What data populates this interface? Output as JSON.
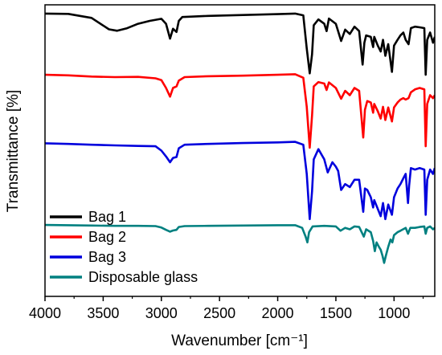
{
  "chart_data": {
    "type": "line",
    "title": "",
    "xlabel": "Wavenumber [cm⁻¹]",
    "ylabel": "Transmittance [%]",
    "xlim": [
      4000,
      650
    ],
    "x_reversed": true,
    "xticks": [
      4000,
      3500,
      3000,
      2500,
      2000,
      1500,
      1000
    ],
    "ylim": [
      0,
      100
    ],
    "y_tick_labels_shown": false,
    "grid": false,
    "legend_position": "bottom-left",
    "series": [
      {
        "name": "Bag 1",
        "color": "#000000",
        "points": [
          [
            4000,
            97
          ],
          [
            3800,
            96.9
          ],
          [
            3600,
            95.5
          ],
          [
            3450,
            91.6
          ],
          [
            3380,
            91.1
          ],
          [
            3300,
            91.9
          ],
          [
            3200,
            93.5
          ],
          [
            3100,
            94.5
          ],
          [
            3000,
            95.2
          ],
          [
            2960,
            93.5
          ],
          [
            2925,
            88.4
          ],
          [
            2900,
            91.8
          ],
          [
            2870,
            90.7
          ],
          [
            2850,
            94.5
          ],
          [
            2820,
            95.8
          ],
          [
            2600,
            96.2
          ],
          [
            2300,
            96.5
          ],
          [
            2000,
            96.8
          ],
          [
            1850,
            97
          ],
          [
            1780,
            96.4
          ],
          [
            1750,
            85
          ],
          [
            1725,
            76.5
          ],
          [
            1705,
            83
          ],
          [
            1690,
            93
          ],
          [
            1650,
            95
          ],
          [
            1600,
            93.5
          ],
          [
            1580,
            91
          ],
          [
            1560,
            95.3
          ],
          [
            1500,
            93.5
          ],
          [
            1455,
            87.6
          ],
          [
            1420,
            91.5
          ],
          [
            1380,
            90
          ],
          [
            1340,
            92.5
          ],
          [
            1300,
            91
          ],
          [
            1270,
            79.5
          ],
          [
            1255,
            87
          ],
          [
            1240,
            89.5
          ],
          [
            1200,
            89
          ],
          [
            1180,
            85.5
          ],
          [
            1170,
            89
          ],
          [
            1140,
            86
          ],
          [
            1115,
            84
          ],
          [
            1095,
            88
          ],
          [
            1075,
            82.5
          ],
          [
            1050,
            86.5
          ],
          [
            1018,
            77
          ],
          [
            1000,
            86
          ],
          [
            970,
            88
          ],
          [
            945,
            89.5
          ],
          [
            920,
            90.5
          ],
          [
            900,
            88
          ],
          [
            875,
            86.5
          ],
          [
            855,
            92
          ],
          [
            820,
            92.5
          ],
          [
            780,
            92.3
          ],
          [
            740,
            92
          ],
          [
            728,
            76
          ],
          [
            715,
            88
          ],
          [
            690,
            90.5
          ],
          [
            665,
            87
          ],
          [
            650,
            89
          ]
        ]
      },
      {
        "name": "Bag 2",
        "color": "#ff0000",
        "points": [
          [
            4000,
            76
          ],
          [
            3800,
            75.8
          ],
          [
            3600,
            75.4
          ],
          [
            3400,
            75.2
          ],
          [
            3200,
            75.3
          ],
          [
            3050,
            74.8
          ],
          [
            3000,
            74.2
          ],
          [
            2960,
            71.5
          ],
          [
            2925,
            68.5
          ],
          [
            2900,
            71.5
          ],
          [
            2870,
            72
          ],
          [
            2850,
            74
          ],
          [
            2800,
            75.2
          ],
          [
            2600,
            75.5
          ],
          [
            2300,
            75.7
          ],
          [
            2000,
            76
          ],
          [
            1850,
            76.2
          ],
          [
            1780,
            75
          ],
          [
            1750,
            65
          ],
          [
            1725,
            51
          ],
          [
            1705,
            62
          ],
          [
            1690,
            72
          ],
          [
            1650,
            73.5
          ],
          [
            1600,
            73
          ],
          [
            1580,
            70.8
          ],
          [
            1560,
            73.4
          ],
          [
            1500,
            71.5
          ],
          [
            1455,
            67.8
          ],
          [
            1420,
            70.5
          ],
          [
            1380,
            69
          ],
          [
            1340,
            71.5
          ],
          [
            1300,
            70.5
          ],
          [
            1265,
            54.5
          ],
          [
            1250,
            64
          ],
          [
            1230,
            67
          ],
          [
            1200,
            66.5
          ],
          [
            1180,
            63
          ],
          [
            1170,
            66
          ],
          [
            1140,
            63.5
          ],
          [
            1115,
            61
          ],
          [
            1095,
            65
          ],
          [
            1075,
            60.5
          ],
          [
            1050,
            64.8
          ],
          [
            1018,
            60
          ],
          [
            1000,
            64.8
          ],
          [
            970,
            66.5
          ],
          [
            945,
            67.5
          ],
          [
            920,
            68
          ],
          [
            900,
            67.5
          ],
          [
            875,
            68
          ],
          [
            855,
            70
          ],
          [
            820,
            71
          ],
          [
            780,
            71.5
          ],
          [
            740,
            71
          ],
          [
            728,
            51.5
          ],
          [
            715,
            66
          ],
          [
            690,
            69
          ],
          [
            665,
            68
          ],
          [
            650,
            69
          ]
        ]
      },
      {
        "name": "Bag 3",
        "color": "#0000dd",
        "points": [
          [
            4000,
            52.5
          ],
          [
            3800,
            52.3
          ],
          [
            3600,
            52
          ],
          [
            3400,
            51.8
          ],
          [
            3200,
            51.6
          ],
          [
            3050,
            51.5
          ],
          [
            3000,
            50
          ],
          [
            2960,
            48
          ],
          [
            2925,
            46
          ],
          [
            2900,
            47.5
          ],
          [
            2870,
            47.8
          ],
          [
            2850,
            50.8
          ],
          [
            2800,
            52
          ],
          [
            2600,
            52.3
          ],
          [
            2300,
            52.6
          ],
          [
            2000,
            52.8
          ],
          [
            1850,
            53
          ],
          [
            1780,
            52
          ],
          [
            1750,
            42
          ],
          [
            1725,
            26.5
          ],
          [
            1705,
            36
          ],
          [
            1690,
            47
          ],
          [
            1650,
            50.5
          ],
          [
            1600,
            47
          ],
          [
            1570,
            42.5
          ],
          [
            1530,
            46
          ],
          [
            1500,
            44.5
          ],
          [
            1480,
            43
          ],
          [
            1455,
            36.5
          ],
          [
            1420,
            38.5
          ],
          [
            1380,
            37.5
          ],
          [
            1340,
            40
          ],
          [
            1300,
            40
          ],
          [
            1265,
            29
          ],
          [
            1250,
            37
          ],
          [
            1230,
            36.5
          ],
          [
            1200,
            34
          ],
          [
            1180,
            30.5
          ],
          [
            1170,
            33
          ],
          [
            1140,
            30
          ],
          [
            1115,
            27.5
          ],
          [
            1095,
            32
          ],
          [
            1075,
            26.5
          ],
          [
            1050,
            31.5
          ],
          [
            1018,
            28
          ],
          [
            1000,
            34
          ],
          [
            970,
            37
          ],
          [
            945,
            38.5
          ],
          [
            920,
            40.5
          ],
          [
            900,
            42
          ],
          [
            880,
            32
          ],
          [
            870,
            38
          ],
          [
            855,
            44
          ],
          [
            820,
            43.5
          ],
          [
            780,
            44
          ],
          [
            740,
            43.5
          ],
          [
            728,
            28
          ],
          [
            715,
            40
          ],
          [
            690,
            43.5
          ],
          [
            665,
            42
          ],
          [
            650,
            44
          ]
        ]
      },
      {
        "name": "Disposable glass",
        "color": "#008080",
        "points": [
          [
            4000,
            24.5
          ],
          [
            3800,
            24.4
          ],
          [
            3600,
            24.3
          ],
          [
            3400,
            24.2
          ],
          [
            3200,
            24.2
          ],
          [
            3050,
            24.1
          ],
          [
            3000,
            23.6
          ],
          [
            2960,
            22.8
          ],
          [
            2925,
            22.2
          ],
          [
            2900,
            22.6
          ],
          [
            2870,
            22.8
          ],
          [
            2850,
            23.8
          ],
          [
            2800,
            24.1
          ],
          [
            2600,
            24.2
          ],
          [
            2300,
            24.3
          ],
          [
            2000,
            24.4
          ],
          [
            1850,
            24.4
          ],
          [
            1790,
            23.5
          ],
          [
            1760,
            20.5
          ],
          [
            1745,
            18.5
          ],
          [
            1730,
            22
          ],
          [
            1700,
            24
          ],
          [
            1600,
            24.2
          ],
          [
            1500,
            24
          ],
          [
            1460,
            22.5
          ],
          [
            1420,
            23.5
          ],
          [
            1380,
            23
          ],
          [
            1340,
            24
          ],
          [
            1300,
            23.8
          ],
          [
            1260,
            20.5
          ],
          [
            1240,
            23
          ],
          [
            1200,
            22
          ],
          [
            1180,
            19
          ],
          [
            1165,
            15.5
          ],
          [
            1150,
            18.5
          ],
          [
            1130,
            17
          ],
          [
            1115,
            16
          ],
          [
            1100,
            14
          ],
          [
            1085,
            11.5
          ],
          [
            1070,
            14
          ],
          [
            1050,
            17
          ],
          [
            1030,
            19.5
          ],
          [
            1015,
            18.5
          ],
          [
            1000,
            21
          ],
          [
            970,
            22
          ],
          [
            945,
            22.5
          ],
          [
            900,
            23.5
          ],
          [
            880,
            21.5
          ],
          [
            860,
            23.5
          ],
          [
            820,
            23.5
          ],
          [
            780,
            23.8
          ],
          [
            740,
            24
          ],
          [
            728,
            21.5
          ],
          [
            715,
            23.5
          ],
          [
            690,
            24
          ],
          [
            665,
            23
          ],
          [
            650,
            23.5
          ]
        ]
      }
    ]
  }
}
